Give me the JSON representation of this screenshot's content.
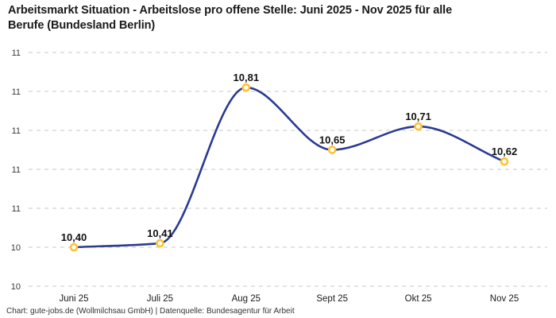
{
  "header": {
    "title": "Arbeitsmarkt Situation - Arbeitslose pro offene Stelle: Juni 2025 - Nov 2025 für alle\nBerufe (Bundesland Berlin)"
  },
  "footer": {
    "credit": "Chart: gute-jobs.de (Wollmilchsau GmbH) | Datenquelle: Bundesagentur für Arbeit"
  },
  "chart_data": {
    "type": "line",
    "title": "Arbeitsmarkt Situation - Arbeitslose pro offene Stelle: Juni 2025 - Nov 2025 für alle Berufe (Bundesland Berlin)",
    "categories": [
      "Juni 25",
      "Juli 25",
      "Aug 25",
      "Sept 25",
      "Okt 25",
      "Nov 25"
    ],
    "series": [
      {
        "name": "Arbeitslose pro offene Stelle",
        "values": [
          10.4,
          10.41,
          10.81,
          10.65,
          10.71,
          10.62
        ],
        "point_labels": [
          "10,40",
          "10,41",
          "10,81",
          "10,65",
          "10,71",
          "10,62"
        ]
      }
    ],
    "xlabel": "",
    "ylabel": "",
    "ylim": [
      10.3,
      10.9
    ],
    "y_axis": {
      "tick_values": [
        10.9,
        10.8,
        10.7,
        10.6,
        10.5,
        10.4,
        10.3
      ],
      "tick_labels": [
        "11",
        "11",
        "11",
        "11",
        "11",
        "10",
        "10"
      ]
    },
    "grid": "horizontal-dashed",
    "legend": "none",
    "line_style": "smooth",
    "colors": {
      "line": "#2B3A92",
      "marker_ring": "#FFC233",
      "marker_fill": "#FFFFFF",
      "grid_line": "#C9C9C9",
      "point_label": "#111111",
      "axis_text": "#3a3a3a",
      "title_text": "#1a1a1a"
    }
  }
}
